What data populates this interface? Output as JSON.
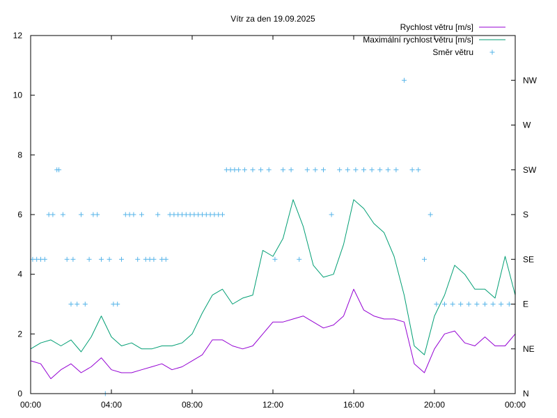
{
  "chart_data": {
    "type": "line",
    "title": "Vítr za den 19.09.2025",
    "xlabel": "",
    "ylabel": "",
    "x_unit": "hours",
    "xlim": [
      0,
      24
    ],
    "ylim": [
      0,
      12
    ],
    "x_ticks": [
      {
        "value": 0,
        "label": "00:00"
      },
      {
        "value": 4,
        "label": "04:00"
      },
      {
        "value": 8,
        "label": "08:00"
      },
      {
        "value": 12,
        "label": "12:00"
      },
      {
        "value": 16,
        "label": "16:00"
      },
      {
        "value": 20,
        "label": "20:00"
      },
      {
        "value": 24,
        "label": "00:00"
      }
    ],
    "y_ticks": [
      {
        "value": 0,
        "label": "0"
      },
      {
        "value": 2,
        "label": "2"
      },
      {
        "value": 4,
        "label": "4"
      },
      {
        "value": 6,
        "label": "6"
      },
      {
        "value": 8,
        "label": "8"
      },
      {
        "value": 10,
        "label": "10"
      },
      {
        "value": 12,
        "label": "12"
      }
    ],
    "y2_ticks": [
      {
        "value": 0,
        "label": "N"
      },
      {
        "value": 1.5,
        "label": "NE"
      },
      {
        "value": 3,
        "label": "E"
      },
      {
        "value": 4.5,
        "label": "SE"
      },
      {
        "value": 6,
        "label": "S"
      },
      {
        "value": 7.5,
        "label": "SW"
      },
      {
        "value": 9,
        "label": "W"
      },
      {
        "value": 10.5,
        "label": "NW"
      }
    ],
    "grid": false,
    "legend_position": "top-right",
    "series": [
      {
        "name": "Rychlost větru [m/s]",
        "style": "line",
        "color": "#9400d3",
        "x": [
          0,
          0.5,
          1,
          1.5,
          2,
          2.5,
          3,
          3.5,
          4,
          4.5,
          5,
          5.5,
          6,
          6.5,
          7,
          7.5,
          8,
          8.5,
          9,
          9.5,
          10,
          10.5,
          11,
          11.5,
          12,
          12.5,
          13,
          13.5,
          14,
          14.5,
          15,
          15.5,
          16,
          16.5,
          17,
          17.5,
          18,
          18.5,
          19,
          19.5,
          20,
          20.5,
          21,
          21.5,
          22,
          22.5,
          23,
          23.5,
          24
        ],
        "values": [
          1.1,
          1.0,
          0.5,
          0.8,
          1.0,
          0.7,
          0.9,
          1.2,
          0.8,
          0.7,
          0.7,
          0.8,
          0.9,
          1.0,
          0.8,
          0.9,
          1.1,
          1.3,
          1.8,
          1.8,
          1.6,
          1.5,
          1.6,
          2.0,
          2.4,
          2.4,
          2.5,
          2.6,
          2.4,
          2.2,
          2.3,
          2.6,
          3.5,
          2.8,
          2.6,
          2.5,
          2.5,
          2.4,
          1.0,
          0.7,
          1.5,
          2.0,
          2.1,
          1.7,
          1.6,
          1.9,
          1.6,
          1.6,
          2.0
        ]
      },
      {
        "name": "Maximální rychlost větru [m/s]",
        "style": "line",
        "color": "#009e73",
        "x": [
          0,
          0.5,
          1,
          1.5,
          2,
          2.5,
          3,
          3.5,
          4,
          4.5,
          5,
          5.5,
          6,
          6.5,
          7,
          7.5,
          8,
          8.5,
          9,
          9.5,
          10,
          10.5,
          11,
          11.5,
          12,
          12.5,
          13,
          13.5,
          14,
          14.5,
          15,
          15.5,
          16,
          16.5,
          17,
          17.5,
          18,
          18.5,
          19,
          19.5,
          20,
          20.5,
          21,
          21.5,
          22,
          22.5,
          23,
          23.5,
          24
        ],
        "values": [
          1.5,
          1.7,
          1.8,
          1.6,
          1.8,
          1.4,
          1.9,
          2.6,
          1.9,
          1.6,
          1.7,
          1.5,
          1.5,
          1.6,
          1.6,
          1.7,
          2.0,
          2.7,
          3.3,
          3.5,
          3.0,
          3.2,
          3.3,
          4.8,
          4.6,
          5.2,
          6.5,
          5.6,
          4.3,
          3.9,
          4.0,
          5.0,
          6.5,
          6.2,
          5.7,
          5.4,
          4.6,
          3.3,
          1.6,
          1.3,
          2.6,
          3.3,
          4.3,
          4.0,
          3.5,
          3.5,
          3.2,
          4.6,
          3.3
        ]
      },
      {
        "name": "Směr větru",
        "style": "points",
        "color": "#56b4e9",
        "x": [
          0.1,
          0.3,
          0.5,
          0.7,
          0.9,
          1.1,
          1.3,
          1.4,
          1.6,
          1.8,
          2.0,
          2.1,
          2.3,
          2.5,
          2.7,
          2.9,
          3.1,
          3.3,
          3.5,
          3.7,
          3.9,
          4.1,
          4.3,
          4.5,
          4.7,
          4.9,
          5.1,
          5.3,
          5.5,
          5.7,
          5.9,
          6.1,
          6.3,
          6.5,
          6.7,
          6.9,
          7.1,
          7.3,
          7.5,
          7.7,
          7.9,
          8.1,
          8.3,
          8.5,
          8.7,
          8.9,
          9.1,
          9.3,
          9.5,
          9.7,
          9.9,
          10.1,
          10.3,
          10.6,
          11.0,
          11.4,
          11.8,
          12.1,
          12.5,
          12.9,
          13.3,
          13.7,
          14.1,
          14.5,
          14.9,
          15.3,
          15.7,
          16.1,
          16.5,
          16.9,
          17.3,
          17.7,
          18.1,
          18.5,
          18.9,
          19.2,
          19.5,
          19.8,
          20.1,
          20.5,
          20.9,
          21.3,
          21.7,
          22.1,
          22.5,
          22.9,
          23.3,
          23.7
        ],
        "values": [
          4.5,
          4.5,
          4.5,
          4.5,
          6,
          6,
          7.5,
          7.5,
          6,
          4.5,
          3,
          4.5,
          3,
          6,
          3,
          4.5,
          6,
          6,
          4.5,
          0,
          4.5,
          3,
          3,
          4.5,
          6,
          6,
          6,
          4.5,
          6,
          4.5,
          4.5,
          4.5,
          6,
          4.5,
          4.5,
          6,
          6,
          6,
          6,
          6,
          6,
          6,
          6,
          6,
          6,
          6,
          6,
          6,
          6,
          7.5,
          7.5,
          7.5,
          7.5,
          7.5,
          7.5,
          7.5,
          7.5,
          4.5,
          7.5,
          7.5,
          4.5,
          7.5,
          7.5,
          7.5,
          6,
          7.5,
          7.5,
          7.5,
          7.5,
          7.5,
          7.5,
          7.5,
          7.5,
          10.5,
          7.5,
          7.5,
          4.5,
          6,
          3,
          3,
          3,
          3,
          3,
          3,
          3,
          3,
          3,
          3
        ]
      }
    ]
  }
}
